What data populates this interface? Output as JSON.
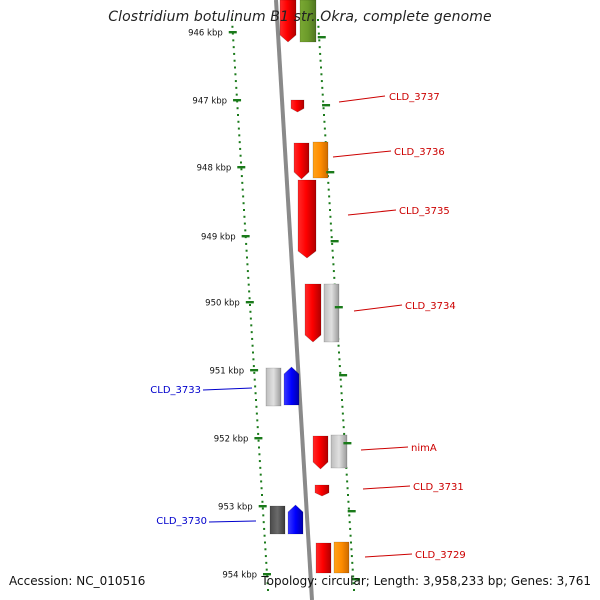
{
  "title": "Clostridium botulinum B1 str. Okra, complete genome",
  "footer": {
    "accession": "Accession: NC_010516",
    "summary": "Topology: circular; Length: 3,958,233 bp; Genes: 3,761"
  },
  "colors": {
    "backbone": "#8a8a8a",
    "tick_dots": "#1a7a1a",
    "plus_label": "#cc0000",
    "minus_label": "#0000cc"
  },
  "ticks": [
    "946 kbp",
    "947 kbp",
    "948 kbp",
    "949 kbp",
    "950 kbp",
    "951 kbp",
    "952 kbp",
    "953 kbp",
    "954 kbp"
  ],
  "gene_labels": [
    {
      "text": "CLD_3737",
      "strand": "plus"
    },
    {
      "text": "CLD_3736",
      "strand": "plus"
    },
    {
      "text": "CLD_3735",
      "strand": "plus"
    },
    {
      "text": "CLD_3734",
      "strand": "plus"
    },
    {
      "text": "CLD_3733",
      "strand": "minus"
    },
    {
      "text": "nimA",
      "strand": "plus"
    },
    {
      "text": "CLD_3731",
      "strand": "plus"
    },
    {
      "text": "CLD_3730",
      "strand": "minus"
    },
    {
      "text": "CLD_3729",
      "strand": "plus"
    }
  ]
}
